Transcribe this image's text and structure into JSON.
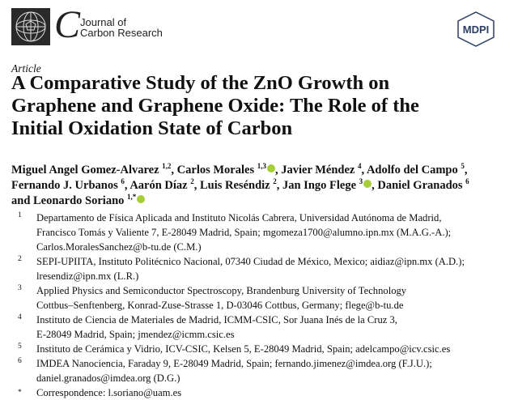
{
  "header": {
    "journal_letter": "C",
    "journal_name_line1": "Journal of",
    "journal_name_line2": "Carbon Research",
    "publisher": "MDPI"
  },
  "article_type": "Article",
  "title_lines": [
    "A Comparative Study of the ZnO Growth on",
    "Graphene and Graphene Oxide: The Role of the",
    "Initial Oxidation State of Carbon"
  ],
  "authors": [
    {
      "name": "Miguel Angel Gomez-Alvarez",
      "aff": "1,2",
      "orcid": false,
      "sep": ", "
    },
    {
      "name": "Carlos Morales",
      "aff": "1,3",
      "orcid": true,
      "sep": ", "
    },
    {
      "name": "Javier Méndez",
      "aff": "4",
      "orcid": false,
      "sep": ", "
    },
    {
      "name": "Adolfo del Campo",
      "aff": "5",
      "orcid": false,
      "sep": ","
    },
    {
      "name": "Fernando J. Urbanos",
      "aff": "6",
      "orcid": false,
      "sep": ", "
    },
    {
      "name": "Aarón Díaz",
      "aff": "2",
      "orcid": false,
      "sep": ", "
    },
    {
      "name": "Luis Reséndiz",
      "aff": "2",
      "orcid": false,
      "sep": ", "
    },
    {
      "name": "Jan Ingo Flege",
      "aff": "3",
      "orcid": true,
      "sep": ", "
    },
    {
      "name": "Daniel Granados",
      "aff": "6",
      "orcid": false,
      "sep": ""
    },
    {
      "name": "and Leonardo Soriano",
      "aff": "1,*",
      "orcid": true,
      "sep": ""
    }
  ],
  "affiliations": [
    {
      "num": "1",
      "lines": [
        "Departamento de Física Aplicada and Instituto Nicolás Cabrera, Universidad Autónoma de Madrid,",
        "Francisco Tomás y Valiente 7, E-28049 Madrid, Spain; mgomeza1700@alumno.ipn.mx (M.A.G.-A.);",
        "Carlos.MoralesSanchez@b-tu.de (C.M.)"
      ]
    },
    {
      "num": "2",
      "lines": [
        "SEPI-UPIITA, Instituto Politécnico Nacional, 07340 Ciudad de México, Mexico; aidiaz@ipn.mx (A.D.);",
        "lresendiz@ipn.mx (L.R.)"
      ]
    },
    {
      "num": "3",
      "lines": [
        "Applied Physics and Semiconductor Spectroscopy, Brandenburg University of Technology",
        "Cottbus–Senftenberg, Konrad-Zuse-Strasse 1, D-03046 Cottbus, Germany; flege@b-tu.de"
      ]
    },
    {
      "num": "4",
      "lines": [
        "Instituto de Ciencia de Materiales de Madrid, ICMM-CSIC, Sor Juana Inés de la Cruz 3,",
        "E-28049 Madrid, Spain; jmendez@icmm.csic.es"
      ]
    },
    {
      "num": "5",
      "lines": [
        "Instituto de Cerámica y Vidrio, ICV-CSIC, Kelsen 5, E-28049 Madrid, Spain; adelcampo@icv.csic.es"
      ]
    },
    {
      "num": "6",
      "lines": [
        "IMDEA Nanociencia, Faraday 9, E-28049 Madrid, Spain; fernando.jimenez@imdea.org (F.J.U.);",
        "daniel.granados@imdea.org (D.G.)"
      ]
    },
    {
      "num": "*",
      "lines": [
        "Correspondence: l.soriano@uam.es"
      ]
    }
  ]
}
